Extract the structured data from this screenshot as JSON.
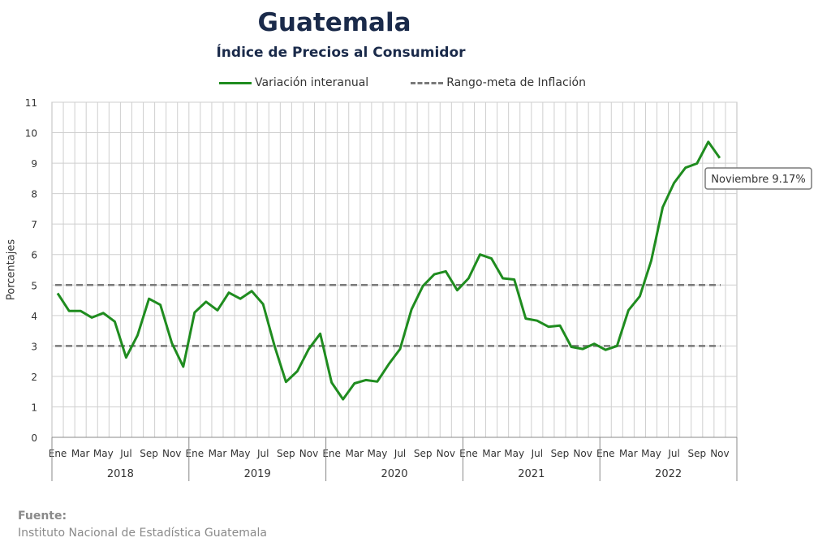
{
  "source": {
    "label": "Fuente:",
    "text": "Instituto Nacional de Estadística Guatemala"
  },
  "colors": {
    "series": "#1f8c1f",
    "target": "#7a7a7a",
    "title": "#1a2a4a",
    "grid": "#cfcfcf"
  },
  "chart_data": {
    "type": "line",
    "title": "Guatemala",
    "subtitle": "Índice de Precios al Consumidor",
    "ylabel": "Porcentajes",
    "ylim": [
      0,
      11
    ],
    "yticks": [
      0,
      1,
      2,
      3,
      4,
      5,
      6,
      7,
      8,
      9,
      10,
      11
    ],
    "grid": true,
    "legend": "top",
    "month_labels": [
      "Ene",
      "Mar",
      "May",
      "Jul",
      "Sep",
      "Nov"
    ],
    "years": [
      "2018",
      "2019",
      "2020",
      "2021",
      "2022"
    ],
    "series": [
      {
        "name": "Variación interanual",
        "values": [
          4.73,
          4.15,
          4.15,
          3.93,
          4.08,
          3.8,
          2.62,
          3.35,
          4.55,
          4.35,
          3.1,
          2.32,
          4.1,
          4.45,
          4.17,
          4.75,
          4.55,
          4.8,
          4.37,
          3.0,
          1.82,
          2.17,
          2.9,
          3.4,
          1.8,
          1.25,
          1.77,
          1.88,
          1.83,
          2.4,
          2.9,
          4.2,
          4.97,
          5.35,
          5.45,
          4.83,
          5.22,
          6.0,
          5.87,
          5.22,
          5.18,
          3.9,
          3.83,
          3.63,
          3.67,
          2.97,
          2.9,
          3.07,
          2.87,
          3.0,
          4.17,
          4.63,
          5.8,
          7.55,
          8.35,
          8.85,
          8.99,
          9.7,
          9.17
        ]
      },
      {
        "name": "Rango-meta de Inflación",
        "lines": [
          3,
          5
        ]
      }
    ],
    "annotation": "Noviembre 9.17%"
  }
}
